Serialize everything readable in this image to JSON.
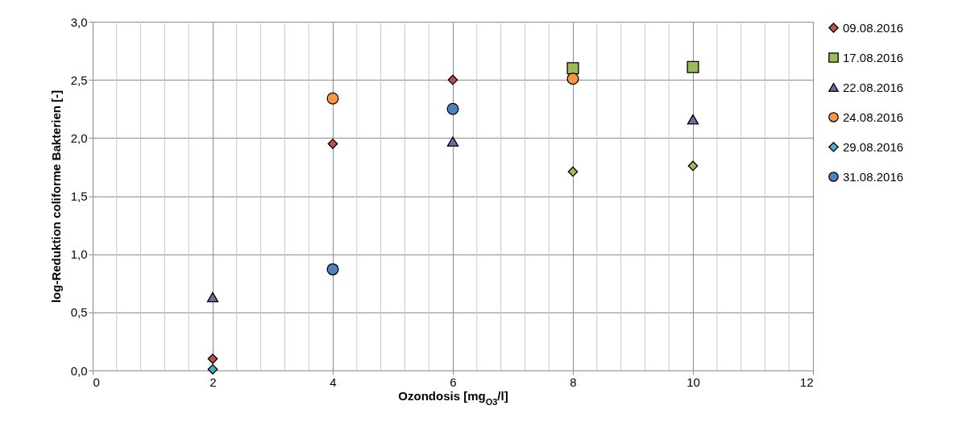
{
  "chart_data": {
    "type": "scatter",
    "xlabel": "Ozondosis [mg$_{O3}$/l]",
    "ylabel": "log-Reduktion coliforme Bakterien [-]",
    "xlim": [
      0,
      12
    ],
    "xticks": [
      0,
      2,
      4,
      6,
      8,
      10,
      12
    ],
    "ylim": [
      0,
      3
    ],
    "yticks": [
      {
        "value": 0,
        "label": "0,0"
      },
      {
        "value": 0.5,
        "label": "0,5"
      },
      {
        "value": 1,
        "label": "1,0"
      },
      {
        "value": 1.5,
        "label": "1,5"
      },
      {
        "value": 2,
        "label": "2,0"
      },
      {
        "value": 2.5,
        "label": "2,5"
      },
      {
        "value": 3,
        "label": "3,0"
      }
    ],
    "grid": true,
    "legend": "right",
    "series": [
      {
        "name": "09.08.2016",
        "color": "#c0504d",
        "marker": "diamond",
        "x": [
          2,
          4,
          6
        ],
        "values": [
          0.1,
          1.95,
          2.5
        ]
      },
      {
        "name": "17.08.2016",
        "color": "#9bbb59",
        "marker": "square",
        "x": [
          8,
          10
        ],
        "values": [
          2.6,
          2.61
        ]
      },
      {
        "name": "22.08.2016",
        "color": "#8064a2",
        "marker": "triangle",
        "x": [
          2,
          6,
          10
        ],
        "values": [
          0.63,
          1.97,
          2.16
        ]
      },
      {
        "name": "24.08.2016",
        "color": "#f79646",
        "marker": "circle",
        "x": [
          4,
          8
        ],
        "values": [
          2.34,
          2.51
        ]
      },
      {
        "name": "29.08.2016",
        "color": "#4bacc6",
        "marker": "diamond",
        "x": [
          2
        ],
        "values": [
          0.01
        ]
      },
      {
        "name": "31.08.2016",
        "color": "#4f81bd",
        "marker": "circle",
        "x": [
          4,
          6
        ],
        "values": [
          0.87,
          2.25
        ]
      },
      {
        "color": "#9bbb59",
        "marker": "diamond",
        "x": [
          8,
          10
        ],
        "values": [
          1.71,
          1.76
        ]
      }
    ]
  }
}
